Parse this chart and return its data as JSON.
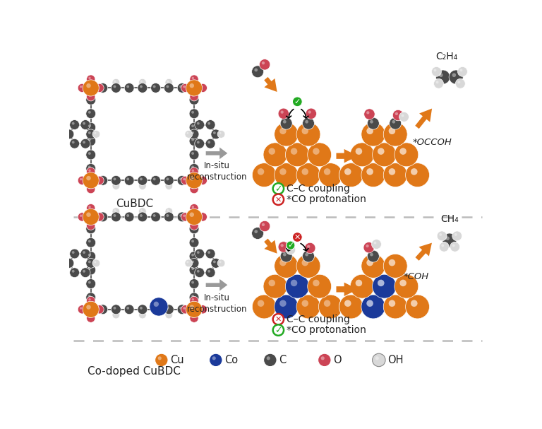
{
  "colors": {
    "Cu": "#E07818",
    "Co": "#1B3A9A",
    "C": "#4A4A4A",
    "O": "#CC4455",
    "H": "#D8D8D8",
    "background": "#FFFFFF",
    "arrow_orange": "#E07818",
    "arrow_gray": "#AAAAAA",
    "dashed_line": "#BBBBBB",
    "green_check": "#22AA22",
    "red_x": "#CC2222",
    "text_dark": "#222222"
  },
  "top_label": "CuBDC",
  "bottom_label": "Co-doped CuBDC",
  "top_product": "C₂H₄",
  "bottom_product": "CH₄",
  "top_intermediate": "*OCCOH",
  "bottom_intermediate": "*COH",
  "insitu_text": "In-situ\nreconstruction",
  "top_coupling": "C–C coupling",
  "top_protonation": "*CO protonation",
  "bottom_coupling": "C–C coupling",
  "bottom_protonation": "*CO protonation"
}
